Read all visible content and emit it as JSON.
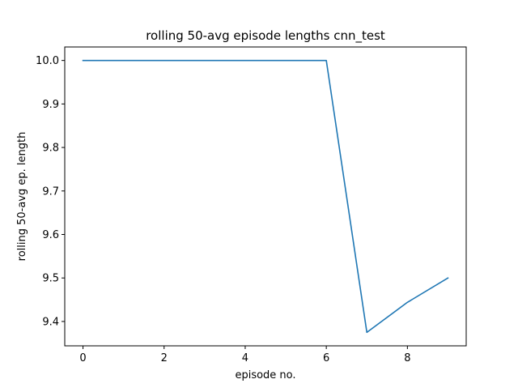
{
  "chart_data": {
    "type": "line",
    "title": "rolling 50-avg episode lengths cnn_test",
    "xlabel": "episode no.",
    "ylabel": "rolling 50-avg ep. length",
    "xlim": [
      -0.45,
      9.45
    ],
    "ylim": [
      9.344,
      10.031
    ],
    "x_ticks": [
      0,
      2,
      4,
      6,
      8
    ],
    "x_tick_labels": [
      "0",
      "2",
      "4",
      "6",
      "8"
    ],
    "y_ticks": [
      9.4,
      9.5,
      9.6,
      9.7,
      9.8,
      9.9,
      10.0
    ],
    "y_tick_labels": [
      "9.4",
      "9.5",
      "9.6",
      "9.7",
      "9.8",
      "9.9",
      "10.0"
    ],
    "grid": false,
    "series": [
      {
        "color": "#1f77b4",
        "x": [
          0,
          1,
          2,
          3,
          4,
          5,
          6,
          7,
          8,
          9
        ],
        "y": [
          10.0,
          10.0,
          10.0,
          10.0,
          10.0,
          10.0,
          10.0,
          9.375,
          9.444,
          9.5
        ]
      }
    ]
  }
}
